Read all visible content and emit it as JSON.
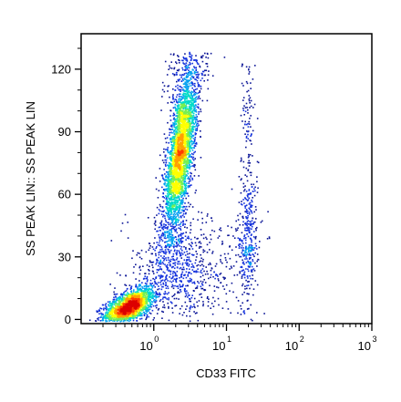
{
  "chart_data": {
    "type": "scatter",
    "plot_style": "density dot plot (flow cytometry)",
    "xlabel": "CD33 FITC",
    "ylabel": "SS PEAK LIN:: SS PEAK LIN",
    "x_scale": "log",
    "xlim": [
      0.1,
      1000
    ],
    "x_ticks": [
      {
        "base": "10",
        "exp": "0",
        "value": 1
      },
      {
        "base": "10",
        "exp": "1",
        "value": 10
      },
      {
        "base": "10",
        "exp": "2",
        "value": 100
      },
      {
        "base": "10",
        "exp": "3",
        "value": 1000
      }
    ],
    "y_scale": "linear",
    "ylim": [
      -2,
      137
    ],
    "y_ticks": [
      {
        "label": "0",
        "value": 0
      },
      {
        "label": "30",
        "value": 30
      },
      {
        "label": "60",
        "value": 60
      },
      {
        "label": "90",
        "value": 90
      },
      {
        "label": "120",
        "value": 120
      }
    ],
    "grid": false,
    "legend": "none",
    "color_scale": [
      "#0a1496",
      "#1432dc",
      "#00a0f0",
      "#00dcc8",
      "#78f050",
      "#ffff00",
      "#ffa000",
      "#ff3c00",
      "#dc0000"
    ],
    "populations": [
      {
        "x_center": 0.45,
        "y_center": 6,
        "count": 1800,
        "peak_density": "high"
      },
      {
        "x_center": 2.3,
        "y_center": 78,
        "count": 3000,
        "peak_density": "medium"
      },
      {
        "x_center": 20,
        "y_center": 36,
        "count": 300,
        "peak_density": "low"
      },
      {
        "x_center": 2.5,
        "y_center": 22,
        "count": 500,
        "peak_density": "low"
      }
    ]
  }
}
